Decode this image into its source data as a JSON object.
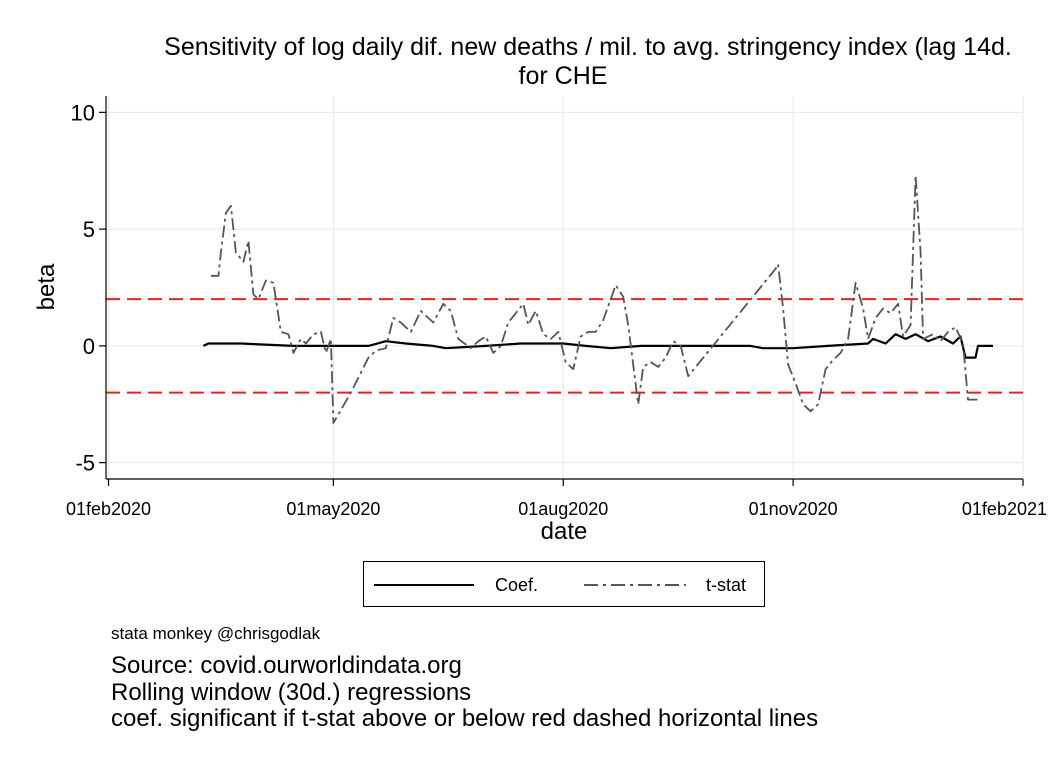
{
  "title_lines": [
    "Sensitivity of log daily dif. new deaths / mil. to avg. stringency index (lag 14d.",
    "for CHE"
  ],
  "credit": "stata monkey @chrisgodlak",
  "captions": [
    "Source: covid.ourworldindata.org",
    "Rolling window (30d.) regressions",
    "coef. significant if t-stat above or below red dashed horizontal lines"
  ],
  "colors": {
    "coef": "#000000",
    "tstat": "#555555",
    "threshold": "#e8221c",
    "grid": "#e6e6e6"
  },
  "chart_data": {
    "type": "line",
    "xlabel": "date",
    "ylabel": "beta",
    "x_range": [
      "2020-01-31",
      "2021-02-01"
    ],
    "ylim": [
      -5.7,
      10.7
    ],
    "x_ticks": [
      {
        "date": "2020-02-01",
        "label": "01feb2020"
      },
      {
        "date": "2020-05-01",
        "label": "01may2020"
      },
      {
        "date": "2020-08-01",
        "label": "01aug2020"
      },
      {
        "date": "2020-11-01",
        "label": "01nov2020"
      },
      {
        "date": "2021-02-01",
        "label": "01feb2021"
      }
    ],
    "y_ticks": [
      {
        "value": 10,
        "label": "10"
      },
      {
        "value": 5,
        "label": "5"
      },
      {
        "value": 0,
        "label": "0"
      },
      {
        "value": -5,
        "label": "-5"
      }
    ],
    "grid": true,
    "legend_position": "bottom",
    "reference_lines": [
      2,
      -2
    ],
    "series": [
      {
        "name": "Coef.",
        "style": "solid",
        "points": [
          [
            "2020-03-10",
            0.0
          ],
          [
            "2020-03-12",
            0.1
          ],
          [
            "2020-03-25",
            0.1
          ],
          [
            "2020-04-15",
            0.0
          ],
          [
            "2020-05-15",
            0.0
          ],
          [
            "2020-05-22",
            0.2
          ],
          [
            "2020-05-30",
            0.1
          ],
          [
            "2020-06-10",
            0.0
          ],
          [
            "2020-06-15",
            -0.1
          ],
          [
            "2020-07-01",
            0.0
          ],
          [
            "2020-07-15",
            0.1
          ],
          [
            "2020-08-01",
            0.1
          ],
          [
            "2020-08-10",
            0.0
          ],
          [
            "2020-08-20",
            -0.1
          ],
          [
            "2020-09-01",
            0.0
          ],
          [
            "2020-09-15",
            0.0
          ],
          [
            "2020-10-15",
            0.0
          ],
          [
            "2020-10-20",
            -0.1
          ],
          [
            "2020-11-01",
            -0.1
          ],
          [
            "2020-11-15",
            0.0
          ],
          [
            "2020-12-01",
            0.1
          ],
          [
            "2020-12-03",
            0.3
          ],
          [
            "2020-12-08",
            0.1
          ],
          [
            "2020-12-12",
            0.5
          ],
          [
            "2020-12-16",
            0.3
          ],
          [
            "2020-12-20",
            0.5
          ],
          [
            "2020-12-25",
            0.2
          ],
          [
            "2020-12-30",
            0.4
          ],
          [
            "2021-01-04",
            0.1
          ],
          [
            "2021-01-07",
            0.4
          ],
          [
            "2021-01-09",
            -0.5
          ],
          [
            "2021-01-13",
            -0.5
          ],
          [
            "2021-01-14",
            0.0
          ],
          [
            "2021-01-20",
            0.0
          ]
        ]
      },
      {
        "name": "t-stat",
        "style": "dash-dot",
        "points": [
          [
            "2020-03-13",
            3.0
          ],
          [
            "2020-03-16",
            3.0
          ],
          [
            "2020-03-17",
            4.0
          ],
          [
            "2020-03-19",
            5.7
          ],
          [
            "2020-03-21",
            6.0
          ],
          [
            "2020-03-23",
            4.0
          ],
          [
            "2020-03-26",
            3.6
          ],
          [
            "2020-03-28",
            4.5
          ],
          [
            "2020-03-30",
            2.2
          ],
          [
            "2020-04-01",
            2.0
          ],
          [
            "2020-04-04",
            2.8
          ],
          [
            "2020-04-07",
            2.7
          ],
          [
            "2020-04-10",
            0.6
          ],
          [
            "2020-04-13",
            0.5
          ],
          [
            "2020-04-15",
            -0.3
          ],
          [
            "2020-04-18",
            0.3
          ],
          [
            "2020-04-20",
            0.1
          ],
          [
            "2020-04-23",
            0.5
          ],
          [
            "2020-04-26",
            0.6
          ],
          [
            "2020-04-28",
            -0.3
          ],
          [
            "2020-04-30",
            0.3
          ],
          [
            "2020-05-01",
            -3.3
          ],
          [
            "2020-05-08",
            -2.0
          ],
          [
            "2020-05-15",
            -0.5
          ],
          [
            "2020-05-18",
            -0.2
          ],
          [
            "2020-05-22",
            -0.1
          ],
          [
            "2020-05-25",
            1.2
          ],
          [
            "2020-05-28",
            1.0
          ],
          [
            "2020-06-01",
            0.6
          ],
          [
            "2020-06-05",
            1.5
          ],
          [
            "2020-06-10",
            1.0
          ],
          [
            "2020-06-14",
            1.8
          ],
          [
            "2020-06-17",
            1.5
          ],
          [
            "2020-06-20",
            0.3
          ],
          [
            "2020-06-25",
            -0.1
          ],
          [
            "2020-06-28",
            0.2
          ],
          [
            "2020-07-01",
            0.4
          ],
          [
            "2020-07-04",
            -0.3
          ],
          [
            "2020-07-07",
            0.0
          ],
          [
            "2020-07-10",
            1.0
          ],
          [
            "2020-07-13",
            1.4
          ],
          [
            "2020-07-16",
            1.8
          ],
          [
            "2020-07-18",
            0.9
          ],
          [
            "2020-07-21",
            1.5
          ],
          [
            "2020-07-24",
            0.5
          ],
          [
            "2020-07-27",
            0.3
          ],
          [
            "2020-07-30",
            0.6
          ],
          [
            "2020-08-02",
            -0.7
          ],
          [
            "2020-08-05",
            -1.0
          ],
          [
            "2020-08-08",
            0.4
          ],
          [
            "2020-08-11",
            0.6
          ],
          [
            "2020-08-14",
            0.6
          ],
          [
            "2020-08-17",
            1.1
          ],
          [
            "2020-08-20",
            2.0
          ],
          [
            "2020-08-22",
            2.6
          ],
          [
            "2020-08-25",
            2.1
          ],
          [
            "2020-08-27",
            0.9
          ],
          [
            "2020-08-29",
            -0.8
          ],
          [
            "2020-08-31",
            -2.5
          ],
          [
            "2020-09-02",
            -0.9
          ],
          [
            "2020-09-05",
            -0.7
          ],
          [
            "2020-09-08",
            -0.9
          ],
          [
            "2020-09-11",
            -0.5
          ],
          [
            "2020-09-14",
            0.2
          ],
          [
            "2020-09-17",
            0.0
          ],
          [
            "2020-09-20",
            -1.3
          ],
          [
            "2020-10-25",
            3.3
          ],
          [
            "2020-10-26",
            3.5
          ],
          [
            "2020-10-28",
            1.6
          ],
          [
            "2020-10-30",
            -0.8
          ],
          [
            "2020-11-02",
            -1.6
          ],
          [
            "2020-11-05",
            -2.5
          ],
          [
            "2020-11-08",
            -2.8
          ],
          [
            "2020-11-11",
            -2.5
          ],
          [
            "2020-11-14",
            -1.0
          ],
          [
            "2020-11-17",
            -0.6
          ],
          [
            "2020-11-20",
            -0.3
          ],
          [
            "2020-11-23",
            0.3
          ],
          [
            "2020-11-26",
            2.7
          ],
          [
            "2020-11-29",
            1.6
          ],
          [
            "2020-12-01",
            0.3
          ],
          [
            "2020-12-04",
            1.2
          ],
          [
            "2020-12-07",
            1.6
          ],
          [
            "2020-12-10",
            1.4
          ],
          [
            "2020-12-13",
            1.8
          ],
          [
            "2020-12-15",
            0.4
          ],
          [
            "2020-12-18",
            0.9
          ],
          [
            "2020-12-20",
            7.3
          ],
          [
            "2020-12-22",
            4.0
          ],
          [
            "2020-12-23",
            0.3
          ],
          [
            "2020-12-27",
            0.5
          ],
          [
            "2020-12-30",
            0.2
          ],
          [
            "2021-01-02",
            0.6
          ],
          [
            "2021-01-05",
            0.8
          ],
          [
            "2021-01-08",
            0.1
          ],
          [
            "2021-01-10",
            -2.3
          ],
          [
            "2021-01-15",
            -2.3
          ]
        ]
      }
    ]
  }
}
